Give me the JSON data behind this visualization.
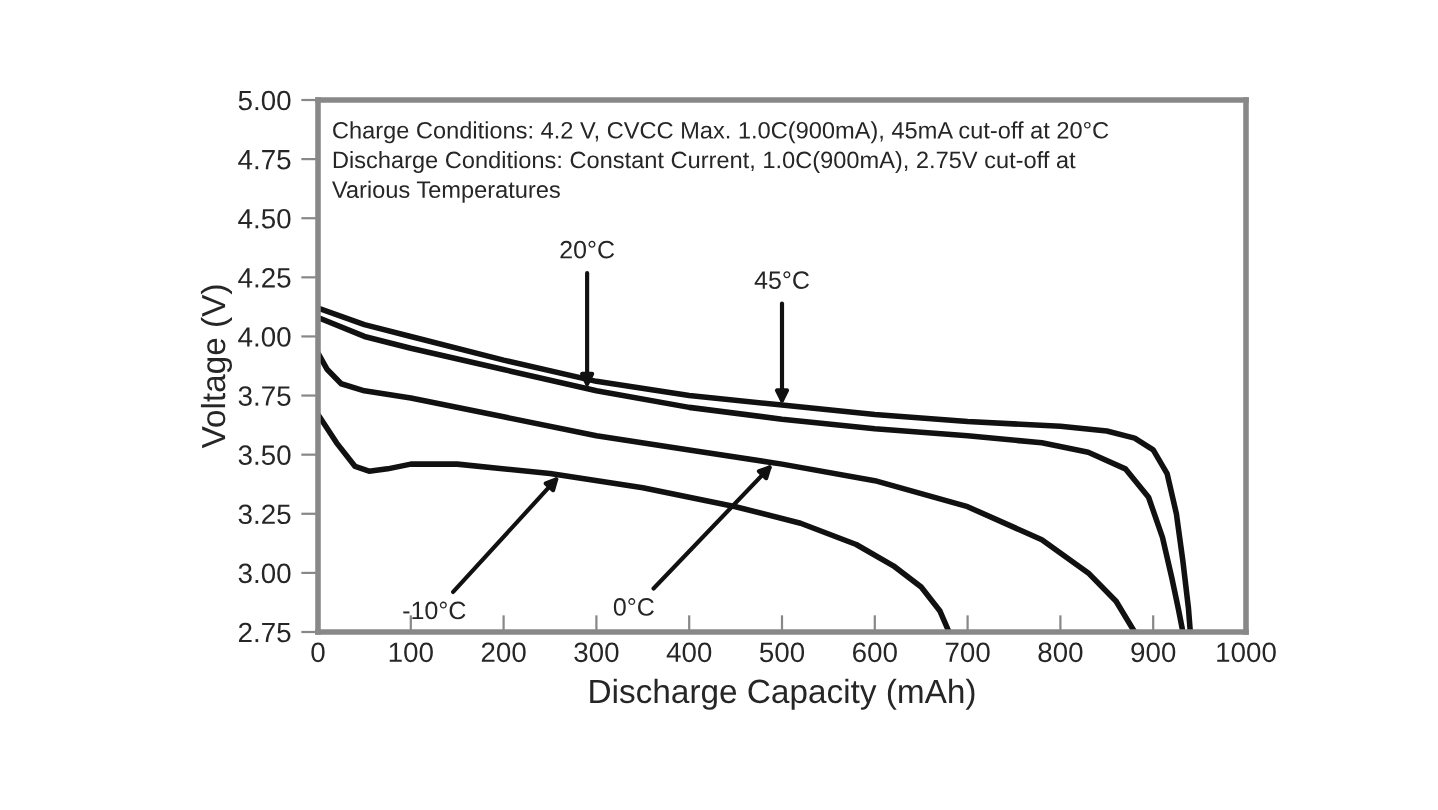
{
  "chart_data": {
    "type": "line",
    "xlabel": "Discharge Capacity (mAh)",
    "ylabel": "Voltage (V)",
    "xlim": [
      0,
      1000
    ],
    "xticks": [
      0,
      100,
      200,
      300,
      400,
      500,
      600,
      700,
      800,
      900,
      1000
    ],
    "ylim": [
      2.75,
      5.0
    ],
    "yticks": [
      {
        "value": 2.75,
        "label": "2.75"
      },
      {
        "value": 3.0,
        "label": "3.00"
      },
      {
        "value": 3.25,
        "label": "3.25"
      },
      {
        "value": 3.5,
        "label": "3.50"
      },
      {
        "value": 3.75,
        "label": "3.75"
      },
      {
        "value": 4.0,
        "label": "4.00"
      },
      {
        "value": 4.25,
        "label": "4.25"
      },
      {
        "value": 4.5,
        "label": "4.50"
      },
      {
        "value": 4.75,
        "label": "4.75"
      },
      {
        "value": 5.0,
        "label": "5.00"
      }
    ],
    "grid": false,
    "legend": false,
    "marker": "none",
    "line_style": "solid",
    "series": [
      {
        "color": "#111111",
        "x": [
          0,
          50,
          100,
          200,
          300,
          400,
          500,
          600,
          700,
          800,
          850,
          880,
          900,
          915,
          925,
          932,
          938,
          940
        ],
        "values": [
          4.12,
          4.05,
          4.0,
          3.9,
          3.81,
          3.75,
          3.71,
          3.67,
          3.64,
          3.62,
          3.6,
          3.57,
          3.52,
          3.42,
          3.25,
          3.05,
          2.85,
          2.75
        ]
      },
      {
        "color": "#111111",
        "x": [
          0,
          50,
          100,
          200,
          300,
          400,
          500,
          600,
          700,
          780,
          830,
          870,
          895,
          910,
          920,
          927,
          932
        ],
        "values": [
          4.08,
          4.0,
          3.95,
          3.86,
          3.77,
          3.7,
          3.65,
          3.61,
          3.58,
          3.55,
          3.51,
          3.44,
          3.32,
          3.15,
          2.98,
          2.85,
          2.75
        ]
      },
      {
        "color": "#111111",
        "x": [
          0,
          10,
          25,
          50,
          100,
          200,
          300,
          400,
          500,
          600,
          700,
          780,
          830,
          860,
          880
        ],
        "values": [
          3.93,
          3.86,
          3.8,
          3.77,
          3.74,
          3.66,
          3.58,
          3.52,
          3.46,
          3.39,
          3.28,
          3.14,
          3.0,
          2.88,
          2.75
        ]
      },
      {
        "color": "#111111",
        "x": [
          0,
          20,
          40,
          55,
          75,
          100,
          150,
          250,
          350,
          450,
          520,
          580,
          620,
          650,
          670,
          680
        ],
        "values": [
          3.67,
          3.55,
          3.45,
          3.43,
          3.44,
          3.46,
          3.46,
          3.42,
          3.36,
          3.28,
          3.21,
          3.12,
          3.03,
          2.94,
          2.84,
          2.75
        ]
      }
    ],
    "annotations": [
      "Charge Conditions: 4.2 V, CVCC Max. 1.0C(900mA), 45mA cut-off at 20°C\nDischarge Conditions: Constant Current, 1.0C(900mA), 2.75V cut-off at\nVarious Temperatures",
      {
        "text": "20°C",
        "x": 290,
        "y": 3.78
      },
      {
        "text": "45°C",
        "x": 500,
        "y": 3.71
      },
      {
        "text": "-10°C",
        "x": 260,
        "y": 3.41
      },
      {
        "text": "0°C",
        "x": 490,
        "y": 3.46
      }
    ]
  }
}
